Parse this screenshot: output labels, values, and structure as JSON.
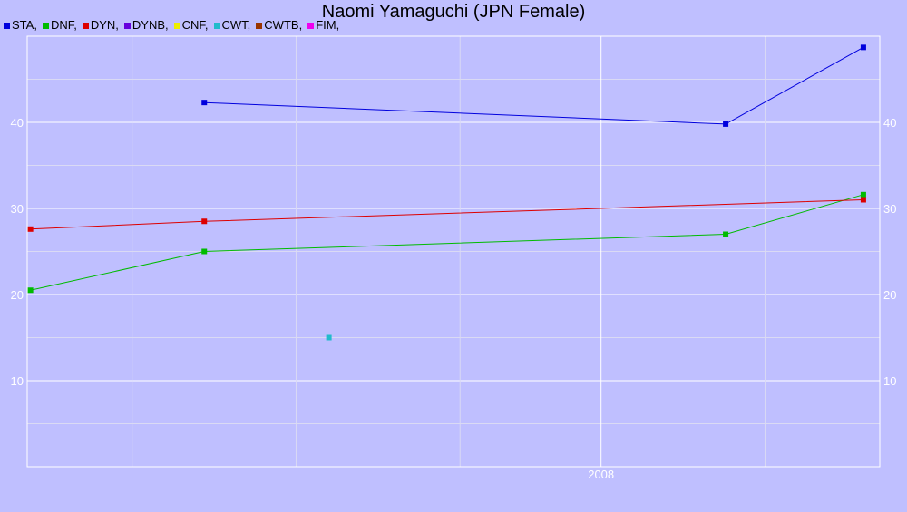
{
  "chart_data": {
    "type": "line",
    "title": "Naomi Yamaguchi (JPN Female)",
    "legend": [
      {
        "label": "STA,",
        "color": "#0000dd"
      },
      {
        "label": "DNF,",
        "color": "#00bb00"
      },
      {
        "label": "DYN,",
        "color": "#dd0000"
      },
      {
        "label": "DYNB,",
        "color": "#6600dd"
      },
      {
        "label": "CNF,",
        "color": "#eeee00"
      },
      {
        "label": "CWT,",
        "color": "#22bbcc"
      },
      {
        "label": "CWTB,",
        "color": "#993300"
      },
      {
        "label": "FIM,",
        "color": "#ee00ee"
      }
    ],
    "xlim": [
      2006.25,
      2008.85
    ],
    "ylim": [
      0,
      50
    ],
    "x_ticks": [
      {
        "value": 2008.0,
        "label": "2008"
      }
    ],
    "x_grid": [
      2006.57,
      2007.07,
      2007.57,
      2008.0,
      2008.5
    ],
    "y_ticks": [
      10,
      20,
      30,
      40
    ],
    "y_grid": [
      5,
      10,
      15,
      20,
      25,
      30,
      35,
      40,
      45
    ],
    "grid": true,
    "series": [
      {
        "name": "STA",
        "color": "#0000dd",
        "points": [
          [
            2006.79,
            42.3
          ],
          [
            2008.38,
            39.8
          ],
          [
            2008.8,
            48.7
          ]
        ]
      },
      {
        "name": "DNF",
        "color": "#00bb00",
        "points": [
          [
            2006.26,
            20.5
          ],
          [
            2006.79,
            25.0
          ],
          [
            2008.38,
            27.0
          ],
          [
            2008.8,
            31.6
          ]
        ]
      },
      {
        "name": "DYN",
        "color": "#dd0000",
        "points": [
          [
            2006.26,
            27.6
          ],
          [
            2006.79,
            28.5
          ],
          [
            2008.8,
            31.0
          ]
        ]
      },
      {
        "name": "CWT",
        "color": "#22bbcc",
        "points": [
          [
            2007.17,
            15.0
          ]
        ]
      }
    ]
  }
}
